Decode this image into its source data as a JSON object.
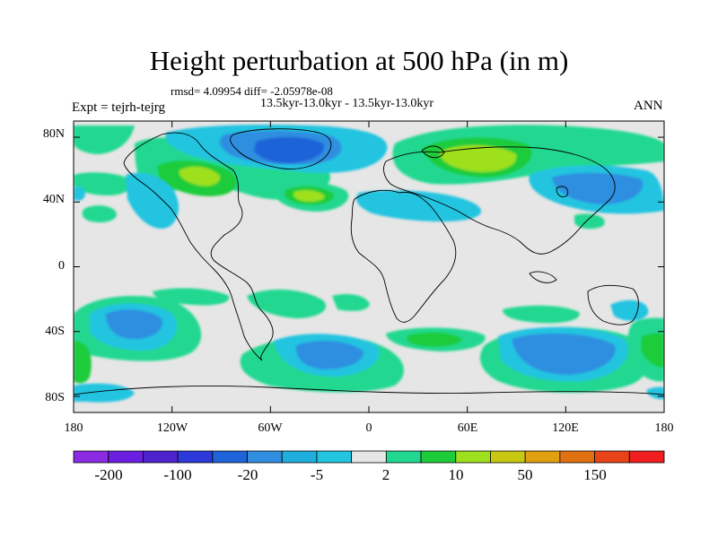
{
  "title": "Height perturbation at 500 hPa (in m)",
  "subtitle_stats": "rmsd= 4.09954 diff= -2.05978e-08",
  "subtitle_experiment": "13.5kyr-13.0kyr - 13.5kyr-13.0kyr",
  "left_label": "Expt = tejrh-tejrg",
  "right_label": "ANN",
  "lat_ticks": [
    "80N",
    "40N",
    "0",
    "40S",
    "80S"
  ],
  "lon_ticks": [
    "180",
    "120W",
    "60W",
    "0",
    "60E",
    "120E",
    "180"
  ],
  "colorbar": {
    "colors": [
      "#8a2be2",
      "#6a1ee0",
      "#4f22d0",
      "#2b3ad8",
      "#1f63d8",
      "#2f8ee0",
      "#1faedd",
      "#22c4e0",
      "#e6e6e6",
      "#20d890",
      "#1ecc3a",
      "#9ee01e",
      "#c8c812",
      "#e0a010",
      "#e07010",
      "#e84418",
      "#f01e1e"
    ],
    "labels": [
      "-200",
      "-100",
      "-20",
      "-5",
      "2",
      "10",
      "50",
      "150"
    ]
  },
  "palette": {
    "ocean_bg": "#e6e6e6",
    "blue_light": "#22c4e0",
    "blue_mid": "#2f8ee0",
    "blue_dark": "#1f63d8",
    "green_teal": "#20d890",
    "green": "#1ecc3a",
    "yellow_green": "#9ee01e"
  }
}
